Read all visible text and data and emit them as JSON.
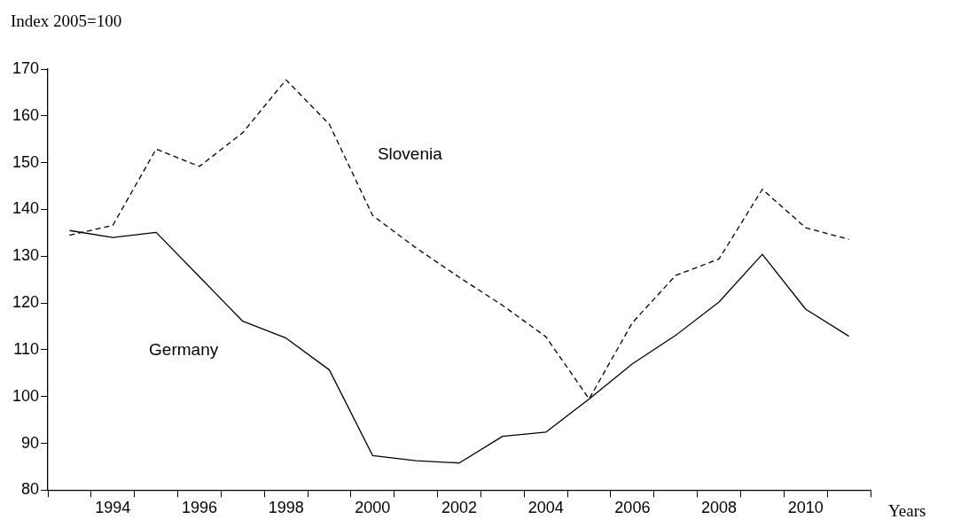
{
  "chart_data": {
    "type": "line",
    "ylabel": "Index 2005=100",
    "xlabel": "Years",
    "categories": [
      null,
      "1994",
      null,
      "1996",
      null,
      "1998",
      null,
      "2000",
      null,
      "2002",
      null,
      "2004",
      null,
      "2006",
      null,
      "2008",
      null,
      "2010",
      null
    ],
    "series": [
      {
        "name": "Slovenia",
        "color": "#000000",
        "line_style": "dashed",
        "values": [
          134.5,
          136.6,
          152.9,
          149.2,
          156.4,
          167.7,
          158.2,
          138.7,
          131.8,
          125.5,
          119.5,
          112.8,
          99.5,
          115.8,
          125.9,
          129.4,
          144.3,
          136.1,
          133.6
        ]
      },
      {
        "name": "Germany",
        "color": "#000000",
        "line_style": "solid",
        "values": [
          135.5,
          134.0,
          135.1,
          125.6,
          116.1,
          112.5,
          105.7,
          87.4,
          86.3,
          85.8,
          91.5,
          92.4,
          99.5,
          107.0,
          113.1,
          120.2,
          130.4,
          118.7,
          112.9
        ]
      }
    ],
    "ylim": [
      80,
      170
    ],
    "yticks": [
      80,
      90,
      100,
      110,
      120,
      130,
      140,
      150,
      160,
      170
    ],
    "grid": false,
    "legend": false,
    "marker": "none"
  }
}
